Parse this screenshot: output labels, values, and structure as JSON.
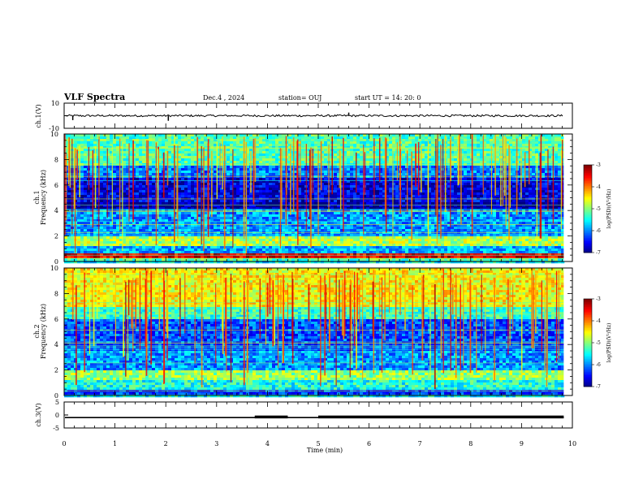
{
  "header": {
    "title": "VLF Spectra",
    "date": "Dec.4 , 2024",
    "station": "station= OUJ",
    "start": "start UT = 14: 20: 0"
  },
  "chart_data": [
    {
      "type": "line",
      "panel": "ch1-waveform",
      "ylabel": "ch.1(V)",
      "ylim": [
        -10,
        10
      ],
      "ytick_labels": [
        "10",
        "-10"
      ],
      "xlim": [
        0,
        10
      ],
      "trace_level": 0,
      "spikes": [
        {
          "x": 0.17,
          "y": -3.5
        },
        {
          "x": 2.05,
          "y": -4
        },
        {
          "x": 5.6,
          "y": 2.5
        }
      ]
    },
    {
      "type": "heatmap",
      "panel": "ch1-spectrogram",
      "ylabel": "ch.1\nFrequency (kHz)",
      "ylim": [
        0,
        10
      ],
      "ytick_labels": [
        "0",
        "2",
        "4",
        "6",
        "8",
        "10"
      ],
      "xlim": [
        0,
        9.83
      ],
      "colorbar": {
        "label": "log(PSD)(V²/Hz)",
        "range": [
          -7,
          -3
        ],
        "tick_labels": [
          "-3",
          "-4",
          "-5",
          "-6",
          "-7"
        ]
      },
      "bands": [
        {
          "from": 0,
          "to": 0.3,
          "level": -5.2
        },
        {
          "from": 0.3,
          "to": 0.6,
          "level": -3.4
        },
        {
          "from": 0.6,
          "to": 1.3,
          "level": -5.8
        },
        {
          "from": 1.3,
          "to": 1.9,
          "level": -4.8
        },
        {
          "from": 1.9,
          "to": 4.0,
          "level": -5.9
        },
        {
          "from": 4.0,
          "to": 4.6,
          "level": -6.9
        },
        {
          "from": 4.6,
          "to": 6.5,
          "level": -6.6
        },
        {
          "from": 6.5,
          "to": 7.5,
          "level": -6.0
        },
        {
          "from": 7.5,
          "to": 10,
          "level": -5.2
        }
      ]
    },
    {
      "type": "heatmap",
      "panel": "ch2-spectrogram",
      "ylabel": "ch.2\nFrequency (kHz)",
      "ylim": [
        0,
        10
      ],
      "ytick_labels": [
        "0",
        "2",
        "4",
        "6",
        "8",
        "10"
      ],
      "xlim": [
        0,
        9.83
      ],
      "colorbar": {
        "label": "log(PSD)(V²/Hz)",
        "range": [
          -7,
          -3
        ],
        "tick_labels": [
          "-3",
          "-4",
          "-5",
          "-6",
          "-7"
        ]
      },
      "bands": [
        {
          "from": 0,
          "to": 0.4,
          "level": -6.3
        },
        {
          "from": 0.4,
          "to": 1.2,
          "level": -5.4
        },
        {
          "from": 1.2,
          "to": 1.9,
          "level": -4.9
        },
        {
          "from": 1.9,
          "to": 3.5,
          "level": -5.9
        },
        {
          "from": 3.5,
          "to": 6.0,
          "level": -6.2
        },
        {
          "from": 6.0,
          "to": 7.0,
          "level": -5.3
        },
        {
          "from": 7.0,
          "to": 10,
          "level": -4.5
        }
      ]
    },
    {
      "type": "line",
      "panel": "ch3-signal",
      "ylabel": "ch.3(V)",
      "ylim": [
        -5,
        5
      ],
      "ytick_labels": [
        "5",
        "0",
        "-5"
      ],
      "xlim": [
        0,
        10
      ],
      "xlabel": "Time  (min)",
      "xtick_labels": [
        "0",
        "1",
        "2",
        "3",
        "4",
        "5",
        "6",
        "7",
        "8",
        "9",
        "10"
      ],
      "trace_level": -1,
      "thick_segments": [
        {
          "from": 3.75,
          "to": 4.4
        },
        {
          "from": 5.0,
          "to": 9.83
        }
      ]
    }
  ]
}
